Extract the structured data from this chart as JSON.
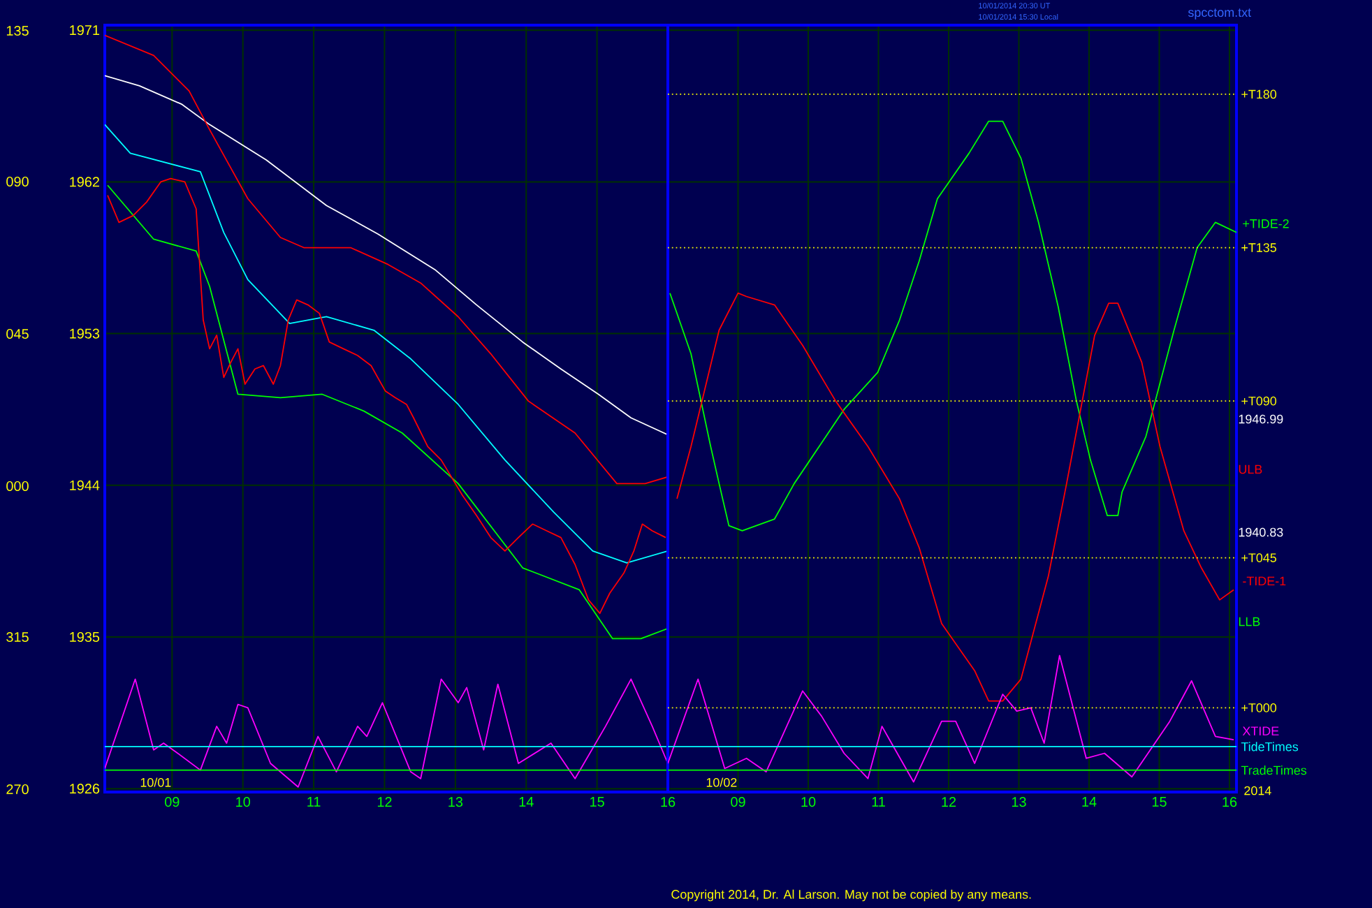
{
  "chart_data": [
    {
      "type": "line",
      "xlim": [
        8.05,
        16
      ],
      "ylim": [
        1925.8,
        1971.3
      ],
      "xticks": [
        {
          "value": 9,
          "label": "09"
        },
        10,
        11,
        12,
        13,
        14,
        15,
        16
      ],
      "yticks": [
        1926,
        1935,
        1944,
        1953,
        1962,
        1971
      ],
      "grid": true,
      "series": [
        {
          "color": "#ffffff",
          "x": [
            8.05,
            8.54,
            9.14,
            9.53,
            10.33,
            11.18,
            11.91,
            12.71,
            13.3,
            13.95,
            14.49,
            15.02,
            15.48,
            16.0
          ],
          "values": [
            1968.3,
            1967.7,
            1966.6,
            1965.4,
            1963.3,
            1960.6,
            1958.9,
            1956.8,
            1954.7,
            1952.5,
            1950.9,
            1949.4,
            1948.0,
            1947.0
          ]
        },
        {
          "color": "#00ffff",
          "x": [
            8.05,
            8.41,
            9.4,
            9.73,
            10.07,
            10.66,
            11.18,
            11.85,
            12.37,
            13.04,
            13.7,
            14.39,
            14.94,
            15.42,
            16.0
          ],
          "values": [
            1965.4,
            1963.7,
            1962.6,
            1959.0,
            1956.2,
            1953.6,
            1954.0,
            1953.2,
            1951.5,
            1948.8,
            1945.5,
            1942.4,
            1940.1,
            1939.4,
            1940.1
          ]
        },
        {
          "color": "#ff0000",
          "x": [
            8.05,
            8.74,
            9.24,
            9.53,
            10.07,
            10.53,
            10.86,
            11.52,
            12.05,
            12.51,
            13.04,
            13.5,
            14.03,
            14.69,
            15.28,
            15.68,
            16.0
          ],
          "values": [
            1970.7,
            1969.5,
            1967.4,
            1965.1,
            1961.0,
            1958.7,
            1958.1,
            1958.1,
            1957.1,
            1956.0,
            1954.0,
            1951.8,
            1949.0,
            1947.1,
            1944.1,
            1944.1,
            1944.5
          ]
        },
        {
          "color": "#00ff00",
          "x": [
            8.09,
            8.74,
            9.34,
            9.53,
            9.93,
            10.53,
            11.12,
            11.71,
            12.25,
            13.04,
            13.95,
            14.75,
            15.22,
            15.62,
            16.0
          ],
          "values": [
            1961.8,
            1958.6,
            1957.9,
            1955.8,
            1949.4,
            1949.2,
            1949.4,
            1948.4,
            1947.1,
            1944.1,
            1939.1,
            1937.8,
            1934.9,
            1934.9,
            1935.5
          ]
        },
        {
          "color": "#ff0000",
          "x": [
            8.09,
            8.25,
            8.45,
            8.64,
            8.84,
            8.98,
            9.18,
            9.34,
            9.44,
            9.53,
            9.63,
            9.73,
            9.83,
            9.93,
            10.03,
            10.17,
            10.29,
            10.43,
            10.53,
            10.64,
            10.76,
            10.92,
            11.08,
            11.22,
            11.42,
            11.62,
            11.81,
            12.01,
            12.15,
            12.31,
            12.41,
            12.61,
            12.8,
            13.1,
            13.3,
            13.5,
            13.7,
            13.89,
            14.09,
            14.29,
            14.49,
            14.69,
            14.88,
            15.04,
            15.18,
            15.38,
            15.52,
            15.64,
            15.78,
            15.97
          ],
          "values": [
            1961.2,
            1959.6,
            1960.0,
            1960.8,
            1962.0,
            1962.2,
            1962.0,
            1960.4,
            1953.8,
            1952.1,
            1952.9,
            1950.4,
            1951.3,
            1952.1,
            1950.0,
            1950.9,
            1951.1,
            1950.0,
            1951.1,
            1953.8,
            1955.0,
            1954.7,
            1954.2,
            1952.5,
            1952.1,
            1951.7,
            1951.1,
            1949.6,
            1949.2,
            1948.8,
            1948.0,
            1946.3,
            1945.5,
            1943.4,
            1942.2,
            1940.9,
            1940.1,
            1940.9,
            1941.7,
            1941.3,
            1940.9,
            1939.3,
            1937.2,
            1936.4,
            1937.6,
            1938.8,
            1940.1,
            1941.7,
            1941.3,
            1940.9
          ]
        },
        {
          "color": "#ff00ff",
          "x": [
            8.05,
            8.48,
            8.74,
            8.88,
            9.08,
            9.4,
            9.63,
            9.77,
            9.93,
            10.07,
            10.39,
            10.78,
            11.06,
            11.32,
            11.62,
            11.75,
            11.97,
            12.37,
            12.51,
            12.8,
            13.04,
            13.16,
            13.4,
            13.6,
            13.89,
            14.35,
            14.69,
            15.12,
            15.48,
            15.78,
            16.0
          ],
          "values": [
            1927.2,
            1932.5,
            1928.3,
            1928.7,
            1928.1,
            1927.1,
            1929.7,
            1928.7,
            1931.0,
            1930.8,
            1927.5,
            1926.1,
            1929.1,
            1927.0,
            1929.7,
            1929.1,
            1931.1,
            1927.0,
            1926.6,
            1932.5,
            1931.1,
            1932.0,
            1928.3,
            1932.2,
            1927.5,
            1928.7,
            1926.6,
            1929.7,
            1932.5,
            1929.7,
            1927.5
          ]
        }
      ],
      "ref_lines": [
        {
          "axis": "y",
          "value": 1928.5,
          "color": "#00ffff",
          "line_style": "solid"
        },
        {
          "axis": "y",
          "value": 1927.1,
          "color": "#00ff00",
          "line_style": "solid"
        }
      ],
      "annotations": [
        "10/01",
        "270",
        "315",
        "000",
        "045",
        "090",
        "135"
      ]
    },
    {
      "type": "line",
      "xlim": [
        8,
        16.1
      ],
      "ylim": [
        1925.8,
        1971.3
      ],
      "xticks": [
        {
          "value": 9,
          "label": "09"
        },
        10,
        11,
        12,
        13,
        14,
        15,
        16
      ],
      "yticks": [
        1926,
        1935,
        1944,
        1953,
        1962,
        1971
      ],
      "tick_labels": "x",
      "grid": true,
      "series": [
        {
          "name": "+TIDE-2",
          "color": "#00ff00",
          "x": [
            8.03,
            8.33,
            8.61,
            8.73,
            8.87,
            9.06,
            9.52,
            9.8,
            10.51,
            10.99,
            11.3,
            11.58,
            11.84,
            12.29,
            12.57,
            12.77,
            13.03,
            13.28,
            13.56,
            13.82,
            14.02,
            14.26,
            14.41,
            14.47,
            14.81,
            15.21,
            15.54,
            15.8,
            16.1
          ],
          "values": [
            1955.4,
            1951.8,
            1946.3,
            1944.1,
            1941.6,
            1941.3,
            1942.0,
            1944.1,
            1948.5,
            1950.7,
            1953.8,
            1957.3,
            1961.0,
            1963.7,
            1965.6,
            1965.6,
            1963.4,
            1959.6,
            1954.6,
            1949.0,
            1945.5,
            1942.2,
            1942.2,
            1943.6,
            1946.9,
            1953.2,
            1958.1,
            1959.6,
            1959.0
          ]
        },
        {
          "name": "-TIDE-1",
          "color": "#ff0000",
          "x": [
            8.13,
            8.33,
            8.73,
            9.0,
            9.12,
            9.52,
            9.92,
            10.39,
            10.85,
            11.3,
            11.58,
            11.9,
            12.37,
            12.57,
            12.77,
            13.03,
            13.42,
            13.68,
            14.08,
            14.28,
            14.41,
            14.75,
            15.01,
            15.35,
            15.6,
            15.86,
            16.06
          ],
          "values": [
            1943.2,
            1946.3,
            1953.2,
            1955.4,
            1955.2,
            1954.7,
            1952.3,
            1949.0,
            1946.3,
            1943.2,
            1940.3,
            1935.8,
            1933.0,
            1931.2,
            1931.2,
            1932.5,
            1938.6,
            1944.1,
            1952.9,
            1954.8,
            1954.8,
            1951.3,
            1946.3,
            1941.3,
            1939.1,
            1937.2,
            1937.8
          ]
        },
        {
          "name": "XTIDE",
          "color": "#ff00ff",
          "x": [
            8.0,
            8.43,
            8.81,
            9.12,
            9.4,
            9.92,
            10.19,
            10.51,
            10.85,
            11.05,
            11.5,
            11.9,
            12.1,
            12.37,
            12.77,
            12.97,
            13.17,
            13.36,
            13.58,
            13.96,
            14.22,
            14.61,
            15.15,
            15.46,
            15.8,
            16.06
          ],
          "values": [
            1927.5,
            1932.5,
            1927.2,
            1927.8,
            1927.0,
            1931.8,
            1930.3,
            1928.1,
            1926.6,
            1929.7,
            1926.4,
            1930.0,
            1930.0,
            1927.5,
            1931.6,
            1930.6,
            1930.8,
            1928.7,
            1933.9,
            1927.8,
            1928.1,
            1926.7,
            1930.0,
            1932.4,
            1929.1,
            1928.9
          ]
        }
      ],
      "ref_lines": [
        {
          "axis": "y",
          "value": 1967.2,
          "label": "+T180",
          "color": "#ffff00",
          "line_style": "dotted"
        },
        {
          "axis": "y",
          "value": 1958.1,
          "label": "+T135",
          "color": "#ffff00",
          "line_style": "dotted"
        },
        {
          "axis": "y",
          "value": 1949.0,
          "label": "+T090",
          "color": "#ffff00",
          "line_style": "dotted"
        },
        {
          "axis": "y",
          "value": 1939.7,
          "label": "+T045",
          "color": "#ffff00",
          "line_style": "dotted"
        },
        {
          "axis": "y",
          "value": 1930.8,
          "label": "+T000",
          "color": "#ffff00",
          "line_style": "dotted"
        },
        {
          "axis": "y",
          "value": 1928.5,
          "label": "TideTimes",
          "color": "#00ffff",
          "line_style": "solid"
        },
        {
          "axis": "y",
          "value": 1927.1,
          "label": "TradeTimes",
          "color": "#00ff00",
          "line_style": "solid"
        }
      ],
      "annotations": [
        "1946.99",
        "1940.83",
        "ULB",
        "LLB",
        "10/02",
        "2014",
        "10/01/2014 20:30 UT",
        "10/01/2014 15:30 Local",
        "spcctom.txt",
        "Copyright 2014, Dr. Al Larson. May not be copied by any means."
      ]
    }
  ]
}
